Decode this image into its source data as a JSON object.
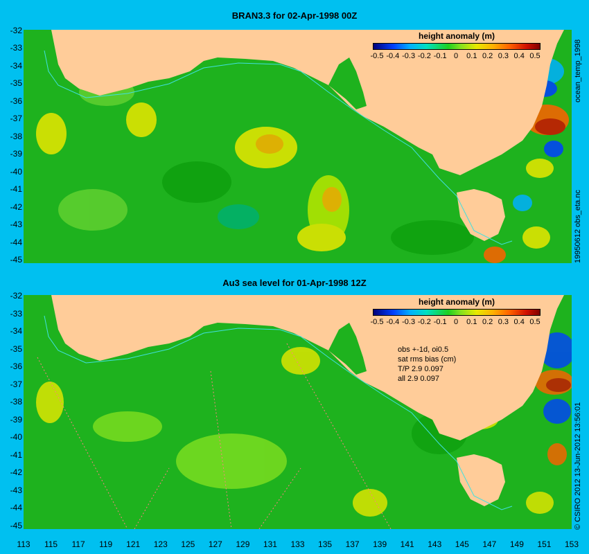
{
  "colors": {
    "land": "#ffcc99",
    "ocean_base": "#1eb21e",
    "coast_line": "#40e0e0",
    "background": "#00c0f0"
  },
  "panels": [
    {
      "title": "BRAN3.3 for 02-Apr-1998 00Z",
      "colorbar_title": "height anomaly (m)",
      "side_label": "ocean_temp_1998",
      "side_label2": "19950612 obs_eta.nc"
    },
    {
      "title": "Au3 sea level  for 01-Apr-1998 12Z",
      "colorbar_title": "height anomaly (m)",
      "side_label": "© CSIRO 2012  13-Jun-2012 13:56:01",
      "stats": [
        "obs +-1d, oi0.5",
        "sat rms bias (cm)",
        "T/P   2.9  0.097",
        "all  2.9  0.097"
      ]
    }
  ],
  "colorbar_ticks": [
    "-0.5",
    "-0.4",
    "-0.3",
    "-0.2",
    "-0.1",
    "0",
    "0.1",
    "0.2",
    "0.3",
    "0.4",
    "0.5"
  ],
  "y_ticks": [
    "-32",
    "-33",
    "-34",
    "-35",
    "-36",
    "-37",
    "-38",
    "-39",
    "-40",
    "-41",
    "-42",
    "-43",
    "-44",
    "-45"
  ],
  "x_ticks": [
    "113",
    "115",
    "117",
    "119",
    "121",
    "123",
    "125",
    "127",
    "129",
    "131",
    "133",
    "135",
    "137",
    "139",
    "141",
    "143",
    "145",
    "147",
    "149",
    "151",
    "153"
  ],
  "chart_data": {
    "type": "heatmap",
    "variable": "height anomaly (m)",
    "color_range": [
      -0.5,
      0.5
    ],
    "lon_range": [
      113,
      153
    ],
    "lat_range": [
      -45,
      -32
    ]
  }
}
